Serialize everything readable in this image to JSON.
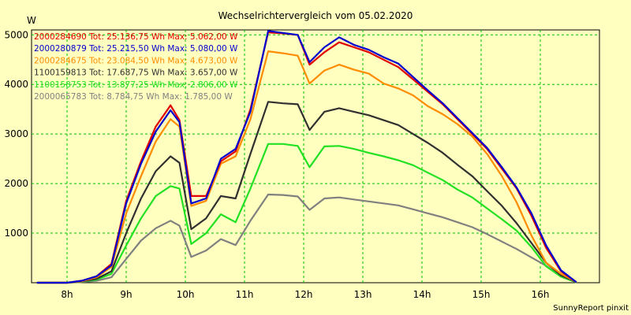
{
  "chart_data": {
    "type": "line",
    "title": "Wechselrichtervergleich vom 05.02.2020",
    "ylabel": "W",
    "xlabel": "",
    "footer": "SunnyReport pinxit",
    "xlim": [
      7.4,
      17.0
    ],
    "ylim": [
      0,
      5100
    ],
    "grid": true,
    "legend_position": "top-left",
    "x_ticks": [
      {
        "value": 8,
        "label": "8h"
      },
      {
        "value": 9,
        "label": "9h"
      },
      {
        "value": 10,
        "label": "10h"
      },
      {
        "value": 11,
        "label": "11h"
      },
      {
        "value": 12,
        "label": "12h"
      },
      {
        "value": 13,
        "label": "13h"
      },
      {
        "value": 14,
        "label": "14h"
      },
      {
        "value": 15,
        "label": "15h"
      },
      {
        "value": 16,
        "label": "16h"
      }
    ],
    "y_ticks": [
      {
        "value": 1000,
        "label": "1000"
      },
      {
        "value": 2000,
        "label": "2000"
      },
      {
        "value": 3000,
        "label": "3000"
      },
      {
        "value": 4000,
        "label": "4000"
      },
      {
        "value": 5000,
        "label": "5000"
      }
    ],
    "x": [
      7.5,
      8.0,
      8.25,
      8.5,
      8.75,
      9.0,
      9.25,
      9.5,
      9.75,
      9.9,
      10.1,
      10.35,
      10.6,
      10.85,
      11.1,
      11.4,
      11.65,
      11.9,
      12.1,
      12.35,
      12.6,
      12.85,
      13.1,
      13.35,
      13.6,
      13.85,
      14.1,
      14.35,
      14.6,
      14.85,
      15.1,
      15.35,
      15.6,
      15.85,
      16.1,
      16.35,
      16.6
    ],
    "series": [
      {
        "name": "2000284690 Tot: 25.136,75 Wh Max: 5.062,00 W",
        "color": "#e00000",
        "values": [
          0,
          0,
          40,
          130,
          380,
          1650,
          2450,
          3150,
          3580,
          3280,
          1750,
          1750,
          2450,
          2650,
          3500,
          5050,
          5030,
          5000,
          4400,
          4650,
          4850,
          4750,
          4650,
          4500,
          4350,
          4100,
          3850,
          3600,
          3300,
          3000,
          2700,
          2300,
          1900,
          1350,
          700,
          230,
          20
        ]
      },
      {
        "name": "2000280879 Tot: 25.215,50 Wh Max: 5.080,00 W",
        "color": "#0000d0",
        "values": [
          0,
          0,
          40,
          130,
          350,
          1600,
          2400,
          3050,
          3480,
          3240,
          1600,
          1700,
          2500,
          2700,
          3450,
          5080,
          5040,
          5000,
          4450,
          4750,
          4950,
          4800,
          4700,
          4550,
          4420,
          4150,
          3880,
          3620,
          3320,
          3020,
          2720,
          2330,
          1920,
          1400,
          750,
          250,
          20
        ]
      },
      {
        "name": "2000284675 Tot: 23.084,50 Wh Max: 4.673,00 W",
        "color": "#ff8c00",
        "values": [
          0,
          0,
          30,
          110,
          320,
          1400,
          2150,
          2850,
          3300,
          3150,
          1550,
          1650,
          2400,
          2550,
          3300,
          4670,
          4630,
          4580,
          4020,
          4280,
          4400,
          4300,
          4220,
          4020,
          3920,
          3780,
          3560,
          3400,
          3200,
          2950,
          2600,
          2150,
          1620,
          950,
          400,
          180,
          20
        ]
      },
      {
        "name": "1100159813 Tot: 17.687,75 Wh Max: 3.657,00 W",
        "color": "#303030",
        "values": [
          0,
          0,
          25,
          80,
          230,
          1000,
          1700,
          2250,
          2550,
          2420,
          1080,
          1300,
          1750,
          1700,
          2600,
          3650,
          3620,
          3600,
          3080,
          3450,
          3520,
          3450,
          3380,
          3280,
          3180,
          3000,
          2820,
          2620,
          2380,
          2150,
          1850,
          1550,
          1200,
          800,
          400,
          150,
          20
        ]
      },
      {
        "name": "1100158753 Tot: 13.877,25 Wh Max: 2.806,00 W",
        "color": "#22e022",
        "values": [
          0,
          0,
          20,
          60,
          180,
          750,
          1300,
          1750,
          1950,
          1900,
          780,
          1000,
          1380,
          1220,
          1900,
          2800,
          2800,
          2760,
          2330,
          2750,
          2760,
          2700,
          2620,
          2550,
          2470,
          2370,
          2220,
          2070,
          1880,
          1720,
          1500,
          1280,
          1050,
          720,
          330,
          120,
          15
        ]
      },
      {
        "name": "2000065783 Tot: 8.784,75 Wh Max: 1.785,00 W",
        "color": "#808080",
        "values": [
          0,
          0,
          15,
          40,
          110,
          480,
          850,
          1100,
          1250,
          1150,
          520,
          650,
          880,
          760,
          1250,
          1780,
          1770,
          1740,
          1470,
          1700,
          1720,
          1680,
          1640,
          1600,
          1560,
          1480,
          1400,
          1320,
          1220,
          1120,
          980,
          830,
          680,
          510,
          340,
          120,
          10
        ]
      }
    ]
  }
}
